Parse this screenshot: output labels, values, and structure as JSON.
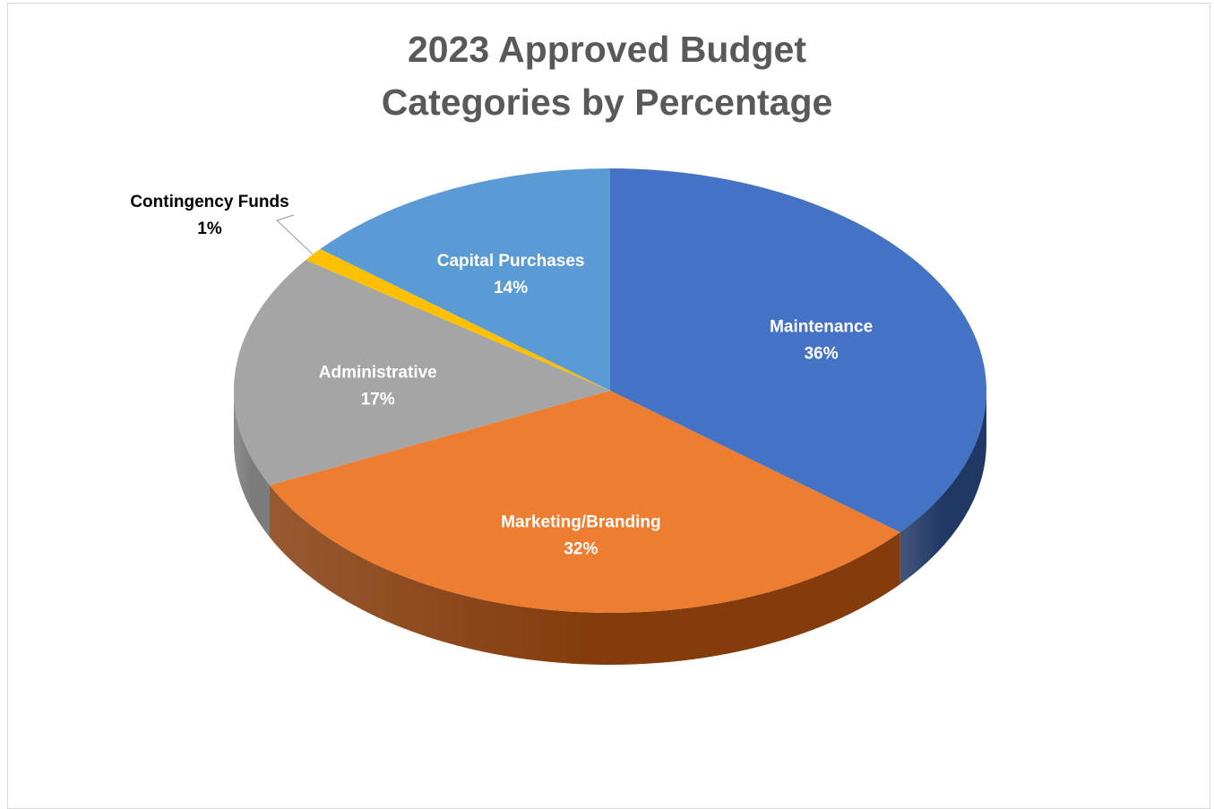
{
  "chart_data": {
    "type": "pie",
    "title_lines": [
      "2023 Approved Budget",
      "Categories by Percentage"
    ],
    "slices": [
      {
        "label": "Maintenance",
        "value": 36,
        "pct_text": "36%",
        "color": "#4472C4",
        "side_color": "#1F3864",
        "label_color": "#FFFFFF"
      },
      {
        "label": "Marketing/Branding",
        "value": 32,
        "pct_text": "32%",
        "color": "#ED7D31",
        "side_color": "#843C0C",
        "label_color": "#FFFFFF"
      },
      {
        "label": "Administrative",
        "value": 17,
        "pct_text": "17%",
        "color": "#A5A5A5",
        "side_color": "#7B7B7B",
        "label_color": "#FFFFFF"
      },
      {
        "label": "Contingency Funds",
        "value": 1,
        "pct_text": "1%",
        "color": "#FFC000",
        "side_color": "#BF9000",
        "label_color": "#000000"
      },
      {
        "label": "Capital Purchases",
        "value": 14,
        "pct_text": "14%",
        "color": "#5B9BD5",
        "side_color": "#2E75B6",
        "label_color": "#FFFFFF"
      }
    ],
    "start": "12 o'clock",
    "direction": "clockwise",
    "style": "3d-tilted"
  }
}
